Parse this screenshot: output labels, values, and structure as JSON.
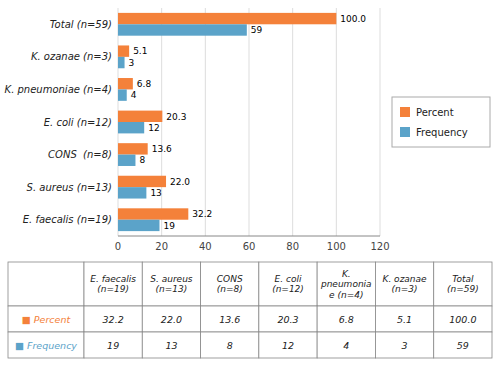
{
  "chart_data": {
    "type": "bar",
    "orientation": "horizontal",
    "categories": [
      "E. faecalis (n=19)",
      "S. aureus (n=13)",
      "CONS  (n=8)",
      "E. coli (n=12)",
      "K. pneumoniae (n=4)",
      "K. ozanae (n=3)",
      "Total (n=59)"
    ],
    "series": [
      {
        "name": "Percent",
        "color": "#F4813A",
        "values": [
          32.2,
          22.0,
          13.6,
          20.3,
          6.8,
          5.1,
          100.0
        ],
        "value_labels": [
          "32.2",
          "22.0",
          "13.6",
          "20.3",
          "6.8",
          "5.1",
          "100.0"
        ]
      },
      {
        "name": "Frequency",
        "color": "#5BA3C9",
        "values": [
          19,
          13,
          8,
          12,
          4,
          3,
          59
        ]
      }
    ],
    "xlim": [
      0,
      120
    ],
    "xticks": [
      0,
      20,
      40,
      60,
      80,
      100,
      120
    ],
    "grid": true,
    "legend": "right",
    "data_labels": true,
    "table": {
      "columns": [
        "E. faecalis\n(n=19)",
        "S. aureus\n(n=13)",
        "CONS\n(n=8)",
        "E. coli\n(n=12)",
        "K.\npneumonia\ne (n=4)",
        "K. ozanae\n(n=3)",
        "Total\n(n=59)"
      ],
      "rows": [
        {
          "label": "■ Percent",
          "values": [
            "32.2",
            "22.0",
            "13.6",
            "20.3",
            "6.8",
            "5.1",
            "100.0"
          ]
        },
        {
          "label": "■ Frequency",
          "values": [
            "19",
            "13",
            "8",
            "12",
            "4",
            "3",
            "59"
          ]
        }
      ]
    }
  }
}
